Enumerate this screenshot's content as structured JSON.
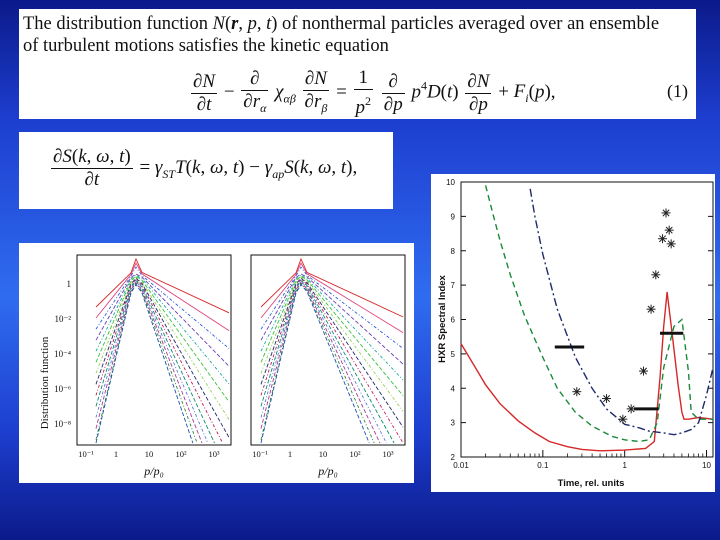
{
  "equation_panel_1": {
    "intro_text": "The distribution function N(r, p, t) of nonthermal particles averaged over an ensemble of turbulent motions satisfies the kinetic equation",
    "intro_line1_a": "The distribution function ",
    "intro_line1_b": " of nonthermal particles averaged over an ensemble",
    "intro_line2": "of turbulent motions satisfies the kinetic equation",
    "equation_number": "(1)"
  },
  "equation_panel_2": {},
  "distribution_plot": {
    "ylabel": "Distribution function",
    "xlabel_left": "p/p₀",
    "xlabel_right": "p/p₀",
    "y_ticks": [
      "1",
      "10⁻²",
      "10⁻⁴",
      "10⁻⁶",
      "10⁻⁸"
    ],
    "x_ticks_left": [
      "10⁻¹",
      "1",
      "10",
      "10²",
      "10³"
    ],
    "x_ticks_right": [
      "10⁻¹",
      "1",
      "10",
      "10²",
      "10³"
    ]
  },
  "chart_data": {
    "type": "line",
    "xlabel": "Time, rel. units",
    "ylabel": "HXR Spectral Index",
    "x_scale": "log",
    "xlim": [
      0.01,
      12
    ],
    "ylim": [
      2,
      10
    ],
    "x_ticks": [
      "0.01",
      "0.1",
      "1",
      "10"
    ],
    "y_ticks": [
      "2",
      "3",
      "4",
      "5",
      "6",
      "7",
      "8",
      "9",
      "10"
    ],
    "colors": {
      "red": "#d62828",
      "green": "#1a8a3a",
      "navy": "#1f2a6b",
      "black": "#111111"
    },
    "series": [
      {
        "style": "solid",
        "color": "red",
        "x": [
          0.01,
          0.015,
          0.02,
          0.03,
          0.05,
          0.08,
          0.12,
          0.2,
          0.3,
          0.5,
          1.0,
          1.8,
          2.3,
          2.7,
          3.0,
          3.3,
          3.8,
          4.5,
          5.0,
          5.3,
          6.0,
          8.0,
          12.0
        ],
        "y": [
          5.3,
          4.6,
          4.1,
          3.55,
          3.05,
          2.7,
          2.45,
          2.3,
          2.22,
          2.18,
          2.2,
          2.25,
          2.45,
          4.3,
          5.8,
          6.8,
          5.6,
          4.1,
          3.3,
          3.1,
          3.1,
          3.15,
          3.1
        ]
      },
      {
        "style": "dashed",
        "color": "green",
        "x": [
          0.02,
          0.025,
          0.03,
          0.04,
          0.06,
          0.1,
          0.15,
          0.25,
          0.4,
          0.7,
          1.0,
          1.5,
          2.0,
          2.5,
          3.0,
          4.0,
          5.0,
          6.0,
          6.5,
          8.0,
          12.0
        ],
        "y": [
          9.9,
          9.0,
          8.3,
          7.3,
          6.1,
          4.9,
          4.0,
          3.3,
          2.9,
          2.6,
          2.5,
          2.45,
          2.5,
          3.0,
          4.6,
          5.8,
          6.0,
          4.5,
          3.3,
          3.1,
          3.1
        ]
      },
      {
        "style": "dashdot",
        "color": "navy",
        "x": [
          0.07,
          0.08,
          0.1,
          0.15,
          0.25,
          0.4,
          0.6,
          1.0,
          1.5,
          2.0,
          3.0,
          4.0,
          5.0,
          6.5,
          8.0,
          10.0,
          12.0
        ],
        "y": [
          9.8,
          9.0,
          7.9,
          6.3,
          4.9,
          4.0,
          3.4,
          2.95,
          2.85,
          2.75,
          2.7,
          2.65,
          2.7,
          2.8,
          3.0,
          3.8,
          4.6
        ]
      }
    ],
    "observed_points": {
      "x": [
        0.26,
        0.6,
        0.95,
        1.2,
        1.7,
        2.1,
        2.4,
        2.9,
        3.2,
        3.5,
        3.7
      ],
      "y": [
        3.9,
        3.7,
        3.1,
        3.4,
        4.5,
        6.3,
        7.3,
        8.35,
        9.1,
        8.6,
        8.2
      ]
    },
    "horizontal_bars": [
      {
        "x0": 0.14,
        "x1": 0.32,
        "y": 5.2
      },
      {
        "x0": 1.3,
        "x1": 2.6,
        "y": 3.4
      },
      {
        "x0": 2.7,
        "x1": 5.2,
        "y": 5.6
      }
    ]
  }
}
